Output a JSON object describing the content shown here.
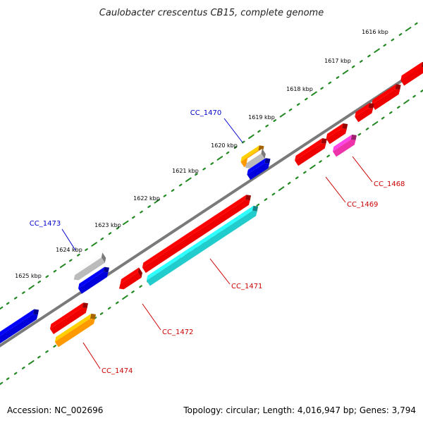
{
  "title": "Caulobacter crescentus CB15, complete genome",
  "accession": "Accession: NC_002696",
  "summary": "Topology: circular; Length: 4,016,947 bp; Genes: 3,794",
  "ticks": [
    "1616 kbp",
    "1617 kbp",
    "1618 kbp",
    "1619 kbp",
    "1620 kbp",
    "1621 kbp",
    "1622 kbp",
    "1623 kbp",
    "1624 kbp",
    "1625 kbp"
  ],
  "gene_labels": [
    {
      "text": "CC_1470",
      "color": "#0000cc"
    },
    {
      "text": "CC_1473",
      "color": "#0000cc"
    },
    {
      "text": "CC_1468",
      "color": "#cc0000"
    },
    {
      "text": "CC_1469",
      "color": "#cc0000"
    },
    {
      "text": "CC_1471",
      "color": "#cc0000"
    },
    {
      "text": "CC_1472",
      "color": "#cc0000"
    },
    {
      "text": "CC_1474",
      "color": "#cc0000"
    }
  ],
  "colors": {
    "backbone": "#7a7a7a",
    "tick_dots": "#228822",
    "red": "#ee0000",
    "blue": "#0000dd",
    "gray": "#bbbbbb",
    "orange": "#ff9900",
    "cyan": "#22cccc",
    "magenta": "#ee33aa"
  }
}
